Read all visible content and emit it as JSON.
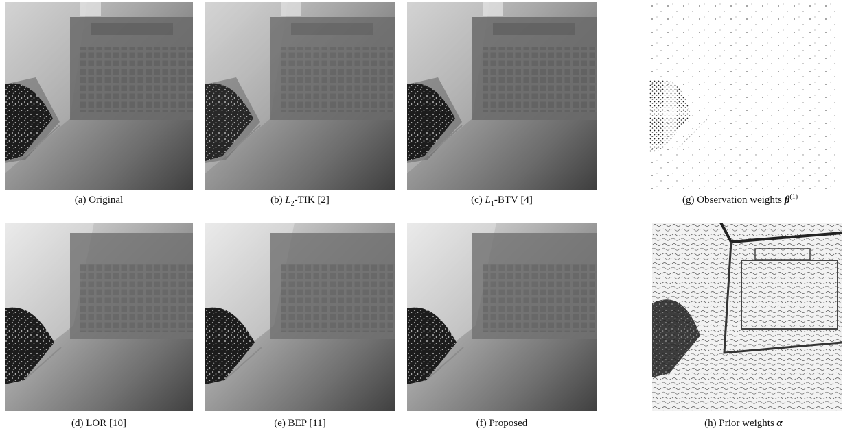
{
  "figure": {
    "panels": [
      {
        "id": "a",
        "type": "recon",
        "prefix": "(a) ",
        "label": "Original"
      },
      {
        "id": "b",
        "type": "recon",
        "prefix": "(b) ",
        "label_pre": "L",
        "label_sub": "2",
        "label_post": "-TIK [2]"
      },
      {
        "id": "c",
        "type": "recon",
        "prefix": "(c) ",
        "label_pre": "L",
        "label_sub": "1",
        "label_post": "-BTV [4]"
      },
      {
        "id": "d",
        "type": "recon",
        "prefix": "(d) ",
        "label": "LOR [10]"
      },
      {
        "id": "e",
        "type": "recon",
        "prefix": "(e) ",
        "label": "BEP [11]"
      },
      {
        "id": "f",
        "type": "recon",
        "prefix": "(f) ",
        "label": "Proposed"
      },
      {
        "id": "g",
        "type": "weights-sparse",
        "prefix": "(g) ",
        "label": "Observation weights ",
        "sym": "β",
        "sup": "(1)"
      },
      {
        "id": "h",
        "type": "weights-edges",
        "prefix": "(h) ",
        "label": "Prior weights ",
        "sym": "α"
      }
    ]
  }
}
